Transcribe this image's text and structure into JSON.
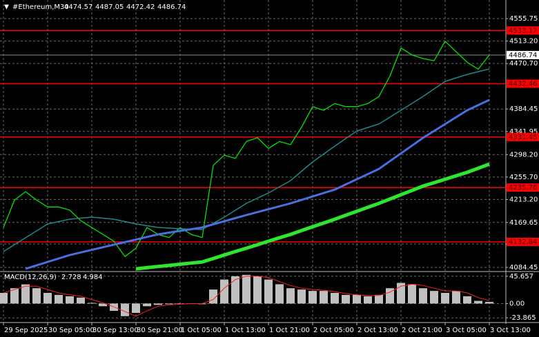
{
  "chart_data": [
    {
      "type": "line",
      "title": "#Ethereum,M30",
      "ohlc": [
        4474.57,
        4487.05,
        4472.42,
        4486.74
      ],
      "categories": [
        "29 Sep 2025",
        null,
        null,
        null,
        "30 Sep 05:00",
        null,
        null,
        null,
        "30 Sep 13:00",
        null,
        null,
        null,
        "30 Sep 21:00",
        null,
        null,
        null,
        "1 Oct 05:00",
        null,
        null,
        null,
        "1 Oct 13:00",
        null,
        null,
        null,
        "1 Oct 21:00",
        null,
        null,
        null,
        "2 Oct 05:00",
        null,
        null,
        null,
        "2 Oct 13:00",
        null,
        null,
        null,
        "2 Oct 21:00",
        null,
        null,
        null,
        "3 Oct 05:00",
        null,
        null,
        null,
        "3 Oct 13:00"
      ],
      "series": [
        {
          "color": "#00e600",
          "width": 1.3,
          "values": [
            4160,
            4212,
            4228,
            4212,
            4199,
            4199,
            4193,
            4173,
            4160,
            4147,
            4134,
            4105,
            4121,
            4160,
            4147,
            4141,
            4160,
            4147,
            4141,
            4278,
            4297,
            4291,
            4323,
            4330,
            4310,
            4323,
            4317,
            4350,
            4389,
            4382,
            4395,
            4389,
            4389,
            4395,
            4408,
            4447,
            4500,
            4487,
            4480,
            4476,
            4513,
            4493,
            4473,
            4460,
            4486.74
          ]
        },
        {
          "color": "#1f8a8a",
          "width": 1.5,
          "values": [
            4114.5,
            4127.6,
            4140.6,
            4153.7,
            4166.7,
            4171.3,
            4175.8,
            4177.8,
            4179.7,
            4177.8,
            4175.8,
            4171.3,
            4166.7,
            4163.5,
            4160.2,
            4158.9,
            4157.6,
            4157.0,
            4156.3,
            4168.0,
            4179.7,
            4192.8,
            4205.8,
            4215.6,
            4225.4,
            4237.2,
            4248.9,
            4266.6,
            4284.2,
            4299.2,
            4314.2,
            4328.6,
            4342.9,
            4349.5,
            4356.0,
            4369.1,
            4382.1,
            4395.2,
            4408.2,
            4422.6,
            4436.9,
            4443.5,
            4450.0,
            4455.2,
            4460.4
          ]
        },
        {
          "color": "#4a6fe0",
          "width": 3,
          "values": [
            null,
            null,
            4081.8,
            4088.3,
            4094.9,
            4101.4,
            4107.9,
            4112.8,
            4117.7,
            4122.6,
            4127.5,
            4132.4,
            4137.3,
            4142.2,
            4147.1,
            4150.4,
            4153.7,
            4156.9,
            4160.2,
            4166.1,
            4171.9,
            4177.8,
            4183.6,
            4189.2,
            4194.7,
            4200.3,
            4205.8,
            4212.3,
            4218.9,
            4225.4,
            4231.9,
            4241.7,
            4251.5,
            4261.3,
            4271.1,
            4285.8,
            4300.5,
            4315.2,
            4329.9,
            4343.0,
            4356.0,
            4369.1,
            4382.1,
            4391.9,
            4401.7
          ]
        },
        {
          "color": "#2ee62e",
          "width": 5,
          "values": [
            null,
            null,
            null,
            null,
            null,
            null,
            null,
            null,
            null,
            null,
            null,
            null,
            4081.8,
            4084.0,
            4086.2,
            4088.3,
            4090.5,
            4092.7,
            4094.9,
            4101.4,
            4108.0,
            4114.5,
            4121.0,
            4127.5,
            4134.1,
            4140.6,
            4147.1,
            4154.3,
            4161.5,
            4168.6,
            4175.8,
            4183.3,
            4190.8,
            4198.3,
            4205.8,
            4214.0,
            4222.2,
            4230.3,
            4238.5,
            4245.0,
            4251.5,
            4258.1,
            4264.6,
            4272.4,
            4280.2
          ]
        }
      ],
      "levels": [
        4533.17,
        4432.46,
        4331.45,
        4235.76,
        4132.84
      ],
      "level_color": "#ff0000",
      "last_price": 4486.74,
      "ylim": [
        4078,
        4591
      ],
      "yticks": [
        4555.75,
        {
          "value": 4513.2,
          "label": "4513.20"
        },
        {
          "value": 4470.7,
          "label": "4470.70"
        },
        4384.45,
        4341.95,
        {
          "value": 4298.2,
          "label": "4298.20"
        },
        {
          "value": 4255.7,
          "label": "4255.70"
        },
        {
          "value": 4213.2,
          "label": "4213.20"
        },
        4169.65,
        4128.95,
        4084.45
      ],
      "grid": true
    },
    {
      "type": "macd",
      "title": "MACD(12,26,9)",
      "readout": [
        2.728,
        4.984
      ],
      "series": [
        {
          "color": "#c0c0c0",
          "values": [
            17.8,
            25.6,
            32,
            25.6,
            17.8,
            14.5,
            12.2,
            10,
            1.1,
            -4.5,
            -12.2,
            -21.1,
            -15.6,
            -4.5,
            -2.2,
            -1.1,
            0,
            0,
            -1.1,
            23.4,
            40.1,
            45.6,
            47.9,
            45.6,
            40.1,
            32.3,
            25.6,
            23.4,
            21.1,
            21.1,
            17.8,
            14.5,
            14.5,
            12.2,
            14.5,
            25.6,
            34.5,
            32.3,
            25.6,
            21.1,
            17.8,
            21.1,
            12.2,
            4.5,
            2.728
          ]
        },
        {
          "color": "#ff2020",
          "values": [
            17.8,
            23.4,
            28.9,
            28.9,
            23.4,
            17.8,
            14.5,
            12.2,
            6.7,
            1.1,
            -5.6,
            -13.4,
            -21.1,
            -12.2,
            -4.5,
            -2.2,
            -1.1,
            0,
            0,
            6.7,
            25.6,
            40.1,
            45.6,
            45.6,
            43.4,
            36.7,
            30.1,
            25.6,
            23.4,
            22.3,
            20.0,
            16.7,
            14.5,
            13.4,
            13.4,
            18.9,
            28.9,
            32.3,
            30.1,
            25.6,
            21.1,
            21.1,
            17.8,
            10.0,
            4.984
          ]
        }
      ],
      "ylim": [
        -29.4,
        52.3
      ],
      "yticks": [
        45.657,
        {
          "value": 0,
          "label": "0.00"
        },
        -23.865
      ],
      "grid": true
    }
  ]
}
